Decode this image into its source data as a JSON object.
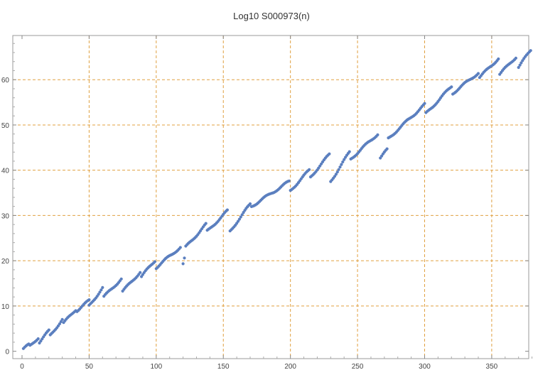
{
  "chart_data": {
    "type": "scatter",
    "title": "Log10 S000973(n)",
    "xlabel": "",
    "ylabel": "",
    "xlim": [
      0,
      382
    ],
    "ylim": [
      -1,
      69
    ],
    "xticks": [
      0,
      50,
      100,
      150,
      200,
      250,
      300,
      350
    ],
    "yticks": [
      0,
      10,
      20,
      30,
      40,
      50,
      60
    ],
    "grid": true,
    "legend": "none",
    "point_color": "#5b7fbf",
    "grid_color": "#e0a040",
    "segments": [
      {
        "x_start": 1,
        "x_end": 5,
        "y_start": 0.5,
        "y_end": 1.4
      },
      {
        "x_start": 6,
        "x_end": 12,
        "y_start": 1.2,
        "y_end": 3.0
      },
      {
        "x_start": 13,
        "x_end": 20,
        "y_start": 2.0,
        "y_end": 4.5
      },
      {
        "x_start": 21,
        "x_end": 30,
        "y_start": 3.5,
        "y_end": 7.0
      },
      {
        "x_start": 31,
        "x_end": 40,
        "y_start": 6.2,
        "y_end": 9.2
      },
      {
        "x_start": 41,
        "x_end": 50,
        "y_start": 9.0,
        "y_end": 11.2
      },
      {
        "x_start": 50,
        "x_end": 60,
        "y_start": 10.0,
        "y_end": 14.0
      },
      {
        "x_start": 61,
        "x_end": 74,
        "y_start": 12.0,
        "y_end": 16.0
      },
      {
        "x_start": 75,
        "x_end": 88,
        "y_start": 13.2,
        "y_end": 17.5
      },
      {
        "x_start": 89,
        "x_end": 99,
        "y_start": 16.5,
        "y_end": 20.0
      },
      {
        "x_start": 100,
        "x_end": 118,
        "y_start": 18.5,
        "y_end": 23.0
      },
      {
        "x_start": 120,
        "x_end": 121,
        "y_start": 19.2,
        "y_end": 20.4
      },
      {
        "x_start": 122,
        "x_end": 137,
        "y_start": 23.0,
        "y_end": 28.0
      },
      {
        "x_start": 138,
        "x_end": 153,
        "y_start": 26.5,
        "y_end": 31.0
      },
      {
        "x_start": 155,
        "x_end": 170,
        "y_start": 26.5,
        "y_end": 32.5
      },
      {
        "x_start": 171,
        "x_end": 199,
        "y_start": 32.0,
        "y_end": 37.5
      },
      {
        "x_start": 200,
        "x_end": 214,
        "y_start": 35.5,
        "y_end": 40.0
      },
      {
        "x_start": 215,
        "x_end": 229,
        "y_start": 38.5,
        "y_end": 43.5
      },
      {
        "x_start": 230,
        "x_end": 244,
        "y_start": 37.5,
        "y_end": 44.0
      },
      {
        "x_start": 245,
        "x_end": 265,
        "y_start": 42.5,
        "y_end": 48.0
      },
      {
        "x_start": 267,
        "x_end": 272,
        "y_start": 42.7,
        "y_end": 44.5
      },
      {
        "x_start": 273,
        "x_end": 300,
        "y_start": 47.0,
        "y_end": 54.5
      },
      {
        "x_start": 301,
        "x_end": 320,
        "y_start": 52.5,
        "y_end": 58.5
      },
      {
        "x_start": 321,
        "x_end": 340,
        "y_start": 57.0,
        "y_end": 61.5
      },
      {
        "x_start": 341,
        "x_end": 355,
        "y_start": 60.5,
        "y_end": 64.7
      },
      {
        "x_start": 356,
        "x_end": 368,
        "y_start": 61.2,
        "y_end": 65.0
      },
      {
        "x_start": 370,
        "x_end": 379,
        "y_start": 62.8,
        "y_end": 66.5
      }
    ]
  }
}
